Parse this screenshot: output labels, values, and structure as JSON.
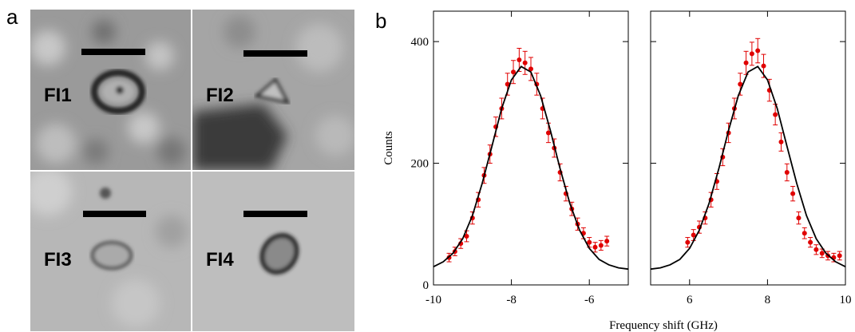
{
  "panel_a": {
    "label": "a",
    "images": [
      {
        "label": "FI1"
      },
      {
        "label": "FI2"
      },
      {
        "label": "FI3"
      },
      {
        "label": "FI4"
      }
    ]
  },
  "chart_data": [
    {
      "type": "scatter",
      "panel_label": "b",
      "ylabel": "Counts",
      "xlabel": "Frequency shift (GHz)",
      "xlim": [
        -10,
        -5
      ],
      "xticks": [
        -10,
        -8,
        -6
      ],
      "ylim": [
        0,
        450
      ],
      "yticks": [
        0,
        200,
        400
      ],
      "series": [
        {
          "color": "#e00000",
          "x": [
            -9.6,
            -9.45,
            -9.3,
            -9.15,
            -9.0,
            -8.85,
            -8.7,
            -8.55,
            -8.4,
            -8.25,
            -8.1,
            -7.95,
            -7.8,
            -7.65,
            -7.5,
            -7.35,
            -7.2,
            -7.05,
            -6.9,
            -6.75,
            -6.6,
            -6.45,
            -6.3,
            -6.15,
            -6.0,
            -5.85,
            -5.7,
            -5.55
          ],
          "values": [
            45,
            55,
            68,
            80,
            110,
            140,
            180,
            215,
            260,
            290,
            330,
            350,
            370,
            365,
            355,
            330,
            290,
            250,
            225,
            185,
            150,
            125,
            100,
            85,
            70,
            62,
            65,
            72
          ],
          "errors": [
            7,
            7,
            8,
            9,
            10,
            12,
            13,
            15,
            16,
            17,
            18,
            19,
            19,
            19,
            19,
            18,
            17,
            16,
            15,
            14,
            12,
            11,
            10,
            9,
            8,
            8,
            8,
            8
          ]
        },
        {
          "color": "#000000",
          "style": "line",
          "x": [
            -10,
            -9.75,
            -9.5,
            -9.25,
            -9,
            -8.75,
            -8.5,
            -8.25,
            -8,
            -7.75,
            -7.5,
            -7.25,
            -7,
            -6.75,
            -6.5,
            -6.25,
            -6,
            -5.75,
            -5.5,
            -5.25,
            -5
          ],
          "values": [
            30,
            38,
            52,
            76,
            114,
            167,
            228,
            290,
            337,
            359,
            350,
            311,
            254,
            191,
            134,
            90,
            60,
            42,
            33,
            28,
            26
          ]
        }
      ]
    },
    {
      "type": "scatter",
      "xlim": [
        5,
        10
      ],
      "xticks": [
        6,
        8,
        10
      ],
      "ylim": [
        0,
        450
      ],
      "yticks": [
        0,
        200,
        400
      ],
      "series": [
        {
          "color": "#e00000",
          "x": [
            5.95,
            6.1,
            6.25,
            6.4,
            6.55,
            6.7,
            6.85,
            7.0,
            7.15,
            7.3,
            7.45,
            7.6,
            7.75,
            7.9,
            8.05,
            8.2,
            8.35,
            8.5,
            8.65,
            8.8,
            8.95,
            9.1,
            9.25,
            9.4,
            9.55,
            9.7,
            9.85
          ],
          "values": [
            70,
            82,
            95,
            110,
            140,
            170,
            210,
            250,
            290,
            330,
            365,
            380,
            385,
            360,
            320,
            280,
            235,
            185,
            150,
            110,
            85,
            70,
            58,
            52,
            48,
            45,
            48
          ],
          "errors": [
            8,
            9,
            10,
            10,
            12,
            13,
            14,
            16,
            17,
            18,
            19,
            19,
            20,
            19,
            18,
            17,
            15,
            14,
            12,
            10,
            9,
            8,
            8,
            7,
            7,
            7,
            7
          ]
        },
        {
          "color": "#000000",
          "style": "line",
          "x": [
            5,
            5.25,
            5.5,
            5.75,
            6,
            6.25,
            6.5,
            6.75,
            7,
            7.25,
            7.5,
            7.75,
            8,
            8.25,
            8.5,
            8.75,
            9,
            9.25,
            9.5,
            9.75,
            10
          ],
          "values": [
            26,
            28,
            33,
            42,
            60,
            90,
            134,
            191,
            254,
            311,
            350,
            359,
            337,
            290,
            228,
            167,
            114,
            76,
            52,
            38,
            30
          ]
        }
      ]
    }
  ]
}
